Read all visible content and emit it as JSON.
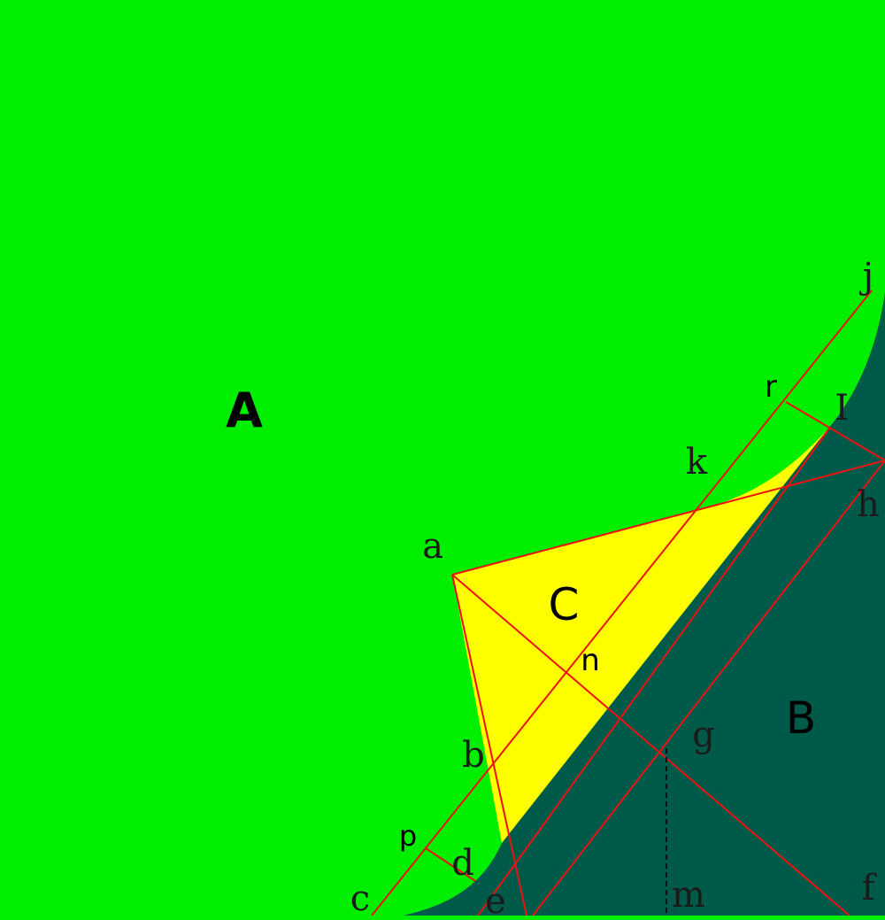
{
  "colors": {
    "region_a": "#00ee00",
    "region_b": "#005a4a",
    "region_c": "#ffff00",
    "lines": "#ee1111",
    "guide": "#111111"
  },
  "regions": {
    "a": "A",
    "b": "B",
    "c": "C"
  },
  "points": {
    "a": "a",
    "b": "b",
    "c": "c",
    "d": "d",
    "e": "e",
    "f": "f",
    "g": "g",
    "h": "h",
    "i": "I",
    "j": "j",
    "k": "k",
    "m": "m",
    "n": "n",
    "p": "p",
    "r": "r"
  }
}
